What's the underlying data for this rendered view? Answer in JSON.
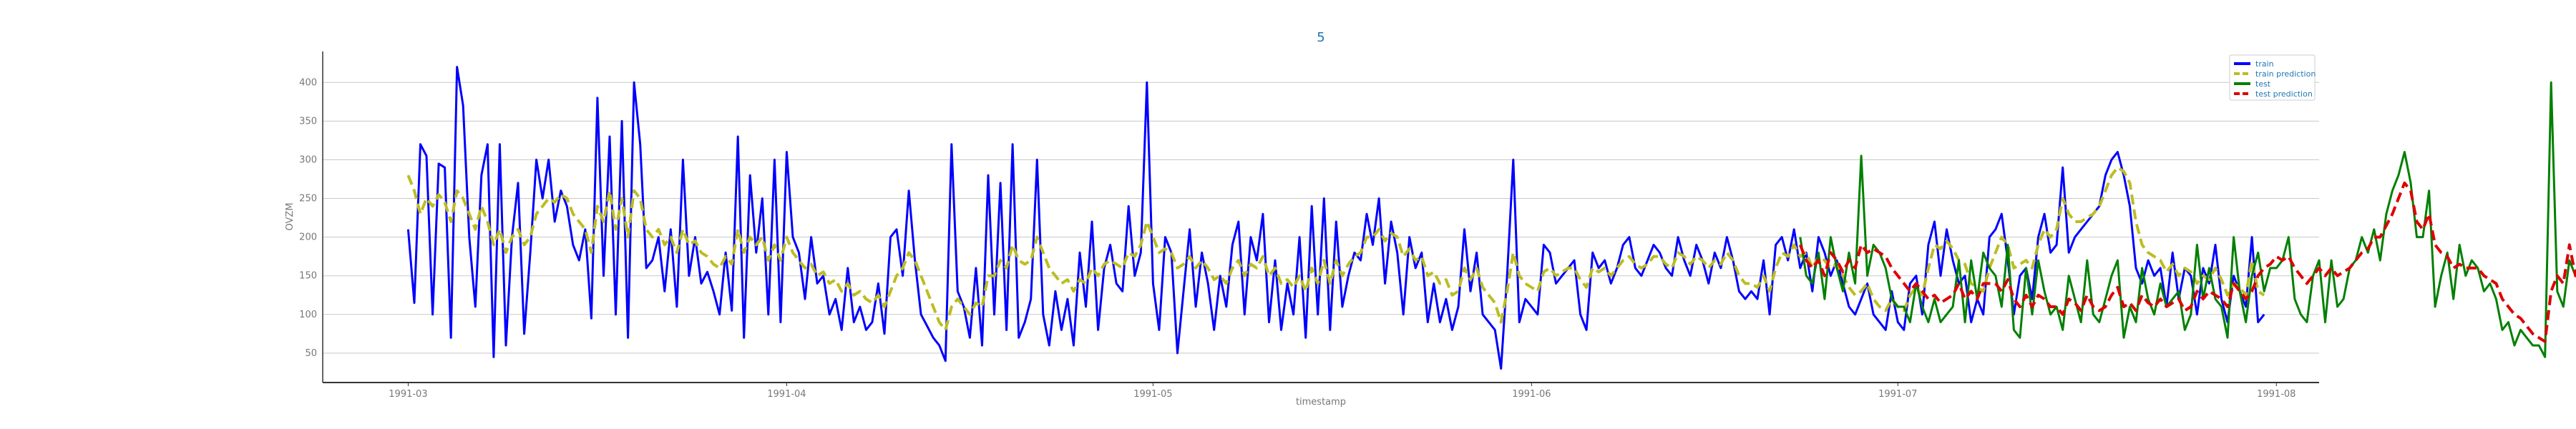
{
  "chart_data": {
    "type": "line",
    "title": "5",
    "xlabel": "timestamp",
    "ylabel": "OVZM",
    "x_ticks": [
      "1991-03",
      "1991-04",
      "1991-05",
      "1991-06",
      "1991-07",
      "1991-08"
    ],
    "x_tick_days": [
      0,
      31,
      61,
      92,
      122,
      153
    ],
    "y_ticks": [
      50,
      100,
      150,
      200,
      250,
      300,
      350,
      400
    ],
    "xlim_days": [
      -7,
      156.5
    ],
    "ylim": [
      12,
      440
    ],
    "grid": "horizontal",
    "legend_position": "top-right",
    "series": [
      {
        "name": "train",
        "color": "#0000ff",
        "dash": "solid",
        "x_start": "1991-03-01",
        "values": [
          210,
          115,
          320,
          305,
          100,
          295,
          290,
          70,
          420,
          370,
          200,
          110,
          280,
          320,
          45,
          320,
          60,
          200,
          270,
          75,
          180,
          300,
          250,
          300,
          220,
          260,
          240,
          190,
          170,
          210,
          95,
          380,
          150,
          330,
          100,
          350,
          70,
          400,
          320,
          160,
          170,
          200,
          130,
          210,
          110,
          300,
          150,
          200,
          140,
          155,
          130,
          100,
          180,
          105,
          330,
          70,
          280,
          180,
          250,
          100,
          300,
          90,
          310,
          200,
          180,
          120,
          200,
          140,
          150,
          100,
          120,
          80,
          160,
          90,
          110,
          80,
          90,
          140,
          75,
          200,
          210,
          150,
          260,
          170,
          100,
          85,
          70,
          60,
          40,
          320,
          130,
          110,
          70,
          160,
          60,
          280,
          100,
          270,
          80,
          320,
          70,
          90,
          120,
          300,
          100,
          60,
          130,
          80,
          120,
          60,
          180,
          110,
          220,
          80,
          160,
          190,
          140,
          130,
          240,
          150,
          180,
          400,
          140,
          80,
          200,
          180,
          50,
          130,
          210,
          110,
          180,
          140,
          80,
          150,
          110,
          190,
          220,
          100,
          200,
          170,
          230,
          90,
          170,
          80,
          140,
          100,
          200,
          70,
          240,
          100,
          250,
          80,
          220,
          110,
          150,
          180,
          170,
          230,
          190,
          250,
          140,
          220,
          180,
          100,
          200,
          160,
          180,
          90,
          140,
          90,
          120,
          80,
          110,
          210,
          130,
          180,
          100,
          90,
          80,
          30,
          150,
          300,
          90,
          120,
          110,
          100,
          190,
          180,
          140,
          150,
          160,
          170,
          100,
          80,
          180,
          160,
          170,
          140,
          160,
          190,
          200,
          160,
          150,
          170,
          190,
          180,
          160,
          150,
          200,
          170,
          150,
          190,
          170,
          140,
          180,
          160,
          200,
          170,
          130,
          120,
          130,
          120,
          170,
          100,
          190,
          200,
          170,
          210,
          160,
          180,
          130,
          200,
          180,
          150,
          170,
          140,
          110,
          100,
          120,
          140,
          100,
          90,
          80,
          130,
          90,
          80,
          140,
          150,
          100,
          190,
          220,
          150,
          210,
          170,
          140,
          150,
          90,
          120,
          100,
          200,
          210,
          230,
          170,
          100,
          150,
          160,
          120,
          200,
          230,
          180,
          190,
          290,
          180,
          200,
          210,
          220,
          230,
          240,
          280,
          300,
          310,
          280,
          240,
          160,
          140,
          170,
          150,
          160,
          110,
          180,
          120,
          160,
          150,
          100,
          160,
          140,
          190,
          120,
          90,
          150,
          130,
          110,
          200,
          90,
          100
        ]
      },
      {
        "name": "train prediction",
        "color": "#bcbd22",
        "dash": "dashed",
        "x_start": "1991-03-01",
        "values": [
          280,
          260,
          230,
          250,
          240,
          255,
          245,
          220,
          260,
          250,
          230,
          210,
          240,
          220,
          190,
          210,
          180,
          200,
          210,
          190,
          200,
          230,
          240,
          250,
          245,
          255,
          250,
          230,
          220,
          210,
          180,
          240,
          220,
          260,
          210,
          250,
          200,
          260,
          250,
          210,
          200,
          210,
          190,
          200,
          180,
          210,
          190,
          195,
          180,
          175,
          165,
          160,
          175,
          165,
          210,
          180,
          200,
          190,
          200,
          170,
          190,
          170,
          200,
          180,
          170,
          160,
          165,
          150,
          155,
          140,
          145,
          130,
          140,
          125,
          130,
          120,
          115,
          125,
          110,
          130,
          150,
          160,
          180,
          170,
          150,
          130,
          110,
          90,
          80,
          110,
          120,
          110,
          100,
          115,
          110,
          150,
          150,
          170,
          160,
          190,
          170,
          165,
          170,
          200,
          180,
          160,
          150,
          140,
          145,
          130,
          145,
          140,
          160,
          150,
          165,
          170,
          165,
          160,
          180,
          175,
          190,
          220,
          200,
          180,
          185,
          180,
          160,
          165,
          175,
          160,
          170,
          160,
          145,
          150,
          140,
          160,
          170,
          150,
          165,
          160,
          175,
          150,
          160,
          140,
          145,
          135,
          150,
          130,
          160,
          140,
          170,
          140,
          170,
          150,
          165,
          175,
          180,
          200,
          200,
          210,
          195,
          205,
          200,
          175,
          185,
          170,
          175,
          150,
          155,
          140,
          145,
          125,
          130,
          160,
          145,
          160,
          135,
          125,
          115,
          90,
          130,
          180,
          150,
          140,
          135,
          130,
          155,
          160,
          150,
          155,
          160,
          160,
          145,
          135,
          160,
          155,
          160,
          150,
          160,
          170,
          175,
          165,
          160,
          165,
          175,
          175,
          165,
          160,
          180,
          175,
          165,
          175,
          170,
          160,
          170,
          165,
          180,
          170,
          150,
          140,
          140,
          135,
          150,
          130,
          160,
          180,
          175,
          190,
          175,
          180,
          160,
          175,
          170,
          160,
          165,
          150,
          135,
          125,
          130,
          140,
          120,
          110,
          105,
          120,
          110,
          105,
          125,
          135,
          125,
          160,
          190,
          185,
          195,
          185,
          170,
          165,
          140,
          135,
          130,
          160,
          180,
          200,
          190,
          160,
          165,
          170,
          160,
          190,
          210,
          200,
          210,
          250,
          230,
          220,
          220,
          225,
          230,
          240,
          260,
          280,
          290,
          285,
          270,
          220,
          190,
          180,
          175,
          170,
          155,
          165,
          150,
          160,
          155,
          140,
          150,
          145,
          160,
          145,
          125,
          140,
          135,
          125,
          170,
          130,
          125
        ]
      },
      {
        "name": "test",
        "color": "#008000",
        "dash": "solid",
        "x_start": "1991-06-23",
        "values": [
          200,
          150,
          140,
          180,
          120,
          200,
          160,
          130,
          180,
          140,
          305,
          150,
          190,
          180,
          160,
          120,
          110,
          110,
          90,
          140,
          110,
          90,
          120,
          90,
          100,
          110,
          170,
          90,
          170,
          120,
          180,
          160,
          150,
          110,
          190,
          80,
          70,
          160,
          100,
          170,
          130,
          100,
          110,
          80,
          150,
          120,
          90,
          170,
          100,
          90,
          120,
          150,
          170,
          70,
          110,
          90,
          160,
          120,
          100,
          140,
          110,
          120,
          130,
          80,
          100,
          190,
          120,
          160,
          120,
          110,
          70,
          200,
          130,
          90,
          150,
          180,
          130,
          160,
          160,
          170,
          200,
          120,
          100,
          90,
          150,
          170,
          90,
          170,
          110,
          120,
          160,
          170,
          200,
          180,
          210,
          170,
          230,
          260,
          280,
          310,
          270,
          200,
          200,
          260,
          110,
          150,
          180,
          120,
          190,
          150,
          170,
          160,
          130,
          140,
          120,
          80,
          90,
          60,
          80,
          70,
          60,
          60,
          45,
          400,
          130,
          110,
          170,
          150,
          190,
          120,
          110,
          120,
          200,
          100
        ]
      },
      {
        "name": "test prediction",
        "color": "#dd0000",
        "dash": "dashed",
        "x_start": "1991-06-23",
        "values": [
          190,
          170,
          160,
          170,
          150,
          180,
          170,
          155,
          170,
          160,
          190,
          180,
          185,
          180,
          175,
          160,
          150,
          140,
          130,
          140,
          130,
          120,
          125,
          115,
          120,
          125,
          140,
          120,
          130,
          120,
          140,
          140,
          140,
          130,
          145,
          120,
          110,
          125,
          110,
          125,
          120,
          110,
          110,
          100,
          120,
          115,
          105,
          125,
          110,
          105,
          110,
          125,
          135,
          110,
          115,
          105,
          125,
          115,
          110,
          120,
          110,
          115,
          120,
          105,
          110,
          130,
          120,
          130,
          125,
          120,
          110,
          140,
          130,
          120,
          130,
          150,
          160,
          165,
          175,
          170,
          175,
          160,
          150,
          140,
          150,
          160,
          150,
          160,
          150,
          155,
          160,
          170,
          180,
          185,
          200,
          200,
          215,
          230,
          250,
          270,
          260,
          220,
          210,
          230,
          190,
          180,
          175,
          160,
          165,
          160,
          160,
          160,
          150,
          145,
          140,
          120,
          110,
          100,
          95,
          85,
          75,
          70,
          65,
          130,
          150,
          140,
          190,
          150,
          165,
          140,
          140,
          130,
          150,
          130
        ]
      }
    ]
  }
}
